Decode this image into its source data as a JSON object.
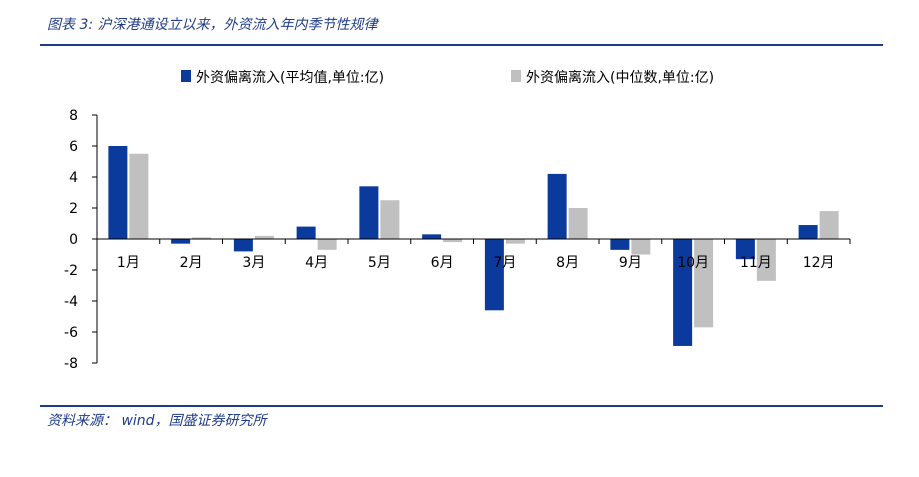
{
  "figure": {
    "title": "图表 3:  沪深港通设立以来，外资流入年内季节性规律",
    "source": "资料来源： wind，国盛证券研究所"
  },
  "colors": {
    "accent": "#1f3c88",
    "series_mean": "#0a3a9c",
    "series_median": "#c0c0c0"
  },
  "chart_data": {
    "type": "bar",
    "categories": [
      "1月",
      "2月",
      "3月",
      "4月",
      "5月",
      "6月",
      "7月",
      "8月",
      "9月",
      "10月",
      "11月",
      "12月"
    ],
    "series": [
      {
        "name": "外资偏离流入(平均值,单位:亿)",
        "values": [
          6.0,
          -0.3,
          -0.8,
          0.8,
          3.4,
          0.3,
          -4.6,
          4.2,
          -0.7,
          -6.9,
          -1.3,
          0.9
        ]
      },
      {
        "name": "外资偏离流入(中位数,单位:亿)",
        "values": [
          5.5,
          0.1,
          0.2,
          -0.7,
          2.5,
          -0.2,
          -0.3,
          2.0,
          -1.0,
          -5.7,
          -2.7,
          1.8
        ]
      }
    ],
    "yticks": [
      "8",
      "6",
      "4",
      "2",
      "0",
      "-2",
      "-4",
      "-6",
      "-8"
    ],
    "ylim": [
      -8,
      8
    ],
    "grid": false,
    "legend": "top"
  }
}
